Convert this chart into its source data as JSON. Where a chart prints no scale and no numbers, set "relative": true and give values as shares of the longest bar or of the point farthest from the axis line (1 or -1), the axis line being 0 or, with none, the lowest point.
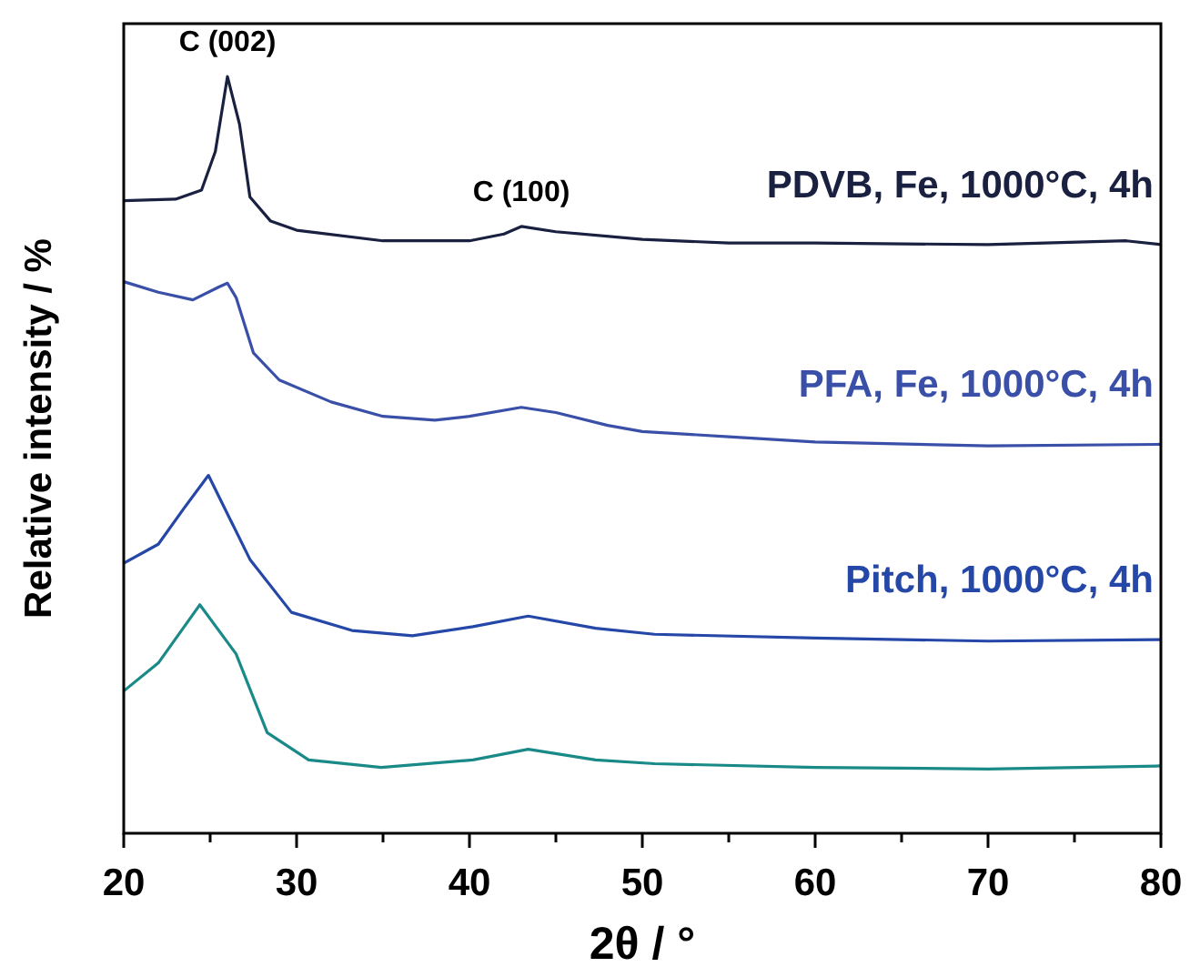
{
  "chart_data": {
    "type": "line",
    "relative": true,
    "xlabel": "2θ  / °",
    "ylabel": "Relative intensity / %",
    "xlim": [
      20,
      80
    ],
    "xticks": [
      20,
      {
        "value": 25,
        "label": null
      },
      30,
      {
        "value": 35,
        "label": null
      },
      40,
      {
        "value": 45,
        "label": null
      },
      50,
      {
        "value": 55,
        "label": null
      },
      60,
      {
        "value": 65,
        "label": null
      },
      70,
      {
        "value": 75,
        "label": null
      },
      80
    ],
    "grid": false,
    "marker": "none",
    "line_style": "solid",
    "annotations": [
      {
        "text": "C (002)",
        "x": 26,
        "y": 1.0
      },
      {
        "text": "C (100)",
        "x": 43,
        "y": 0.802
      }
    ],
    "series": [
      {
        "name": "PDVB, Fe, 1000°C, 4h",
        "color": "#1a2040",
        "x": [
          20,
          23,
          24.5,
          25.3,
          26,
          26.7,
          27.3,
          28.5,
          30,
          35,
          40,
          42,
          43,
          45,
          50,
          55,
          60,
          70,
          78,
          80
        ],
        "values": [
          0.836,
          0.838,
          0.85,
          0.901,
          1.0,
          0.937,
          0.841,
          0.809,
          0.797,
          0.783,
          0.783,
          0.792,
          0.802,
          0.795,
          0.785,
          0.78,
          0.78,
          0.778,
          0.783,
          0.778
        ]
      },
      {
        "name": "PFA, Fe, 1000°C, 4h",
        "color": "#3a50a8",
        "x": [
          20,
          22,
          24,
          25.5,
          26,
          26.5,
          27.5,
          29,
          32,
          35,
          38,
          40,
          43,
          45,
          48,
          50,
          55,
          60,
          70,
          80
        ],
        "values": [
          0.729,
          0.715,
          0.705,
          0.722,
          0.727,
          0.708,
          0.635,
          0.599,
          0.57,
          0.551,
          0.546,
          0.551,
          0.563,
          0.556,
          0.539,
          0.531,
          0.524,
          0.517,
          0.512,
          0.514
        ]
      },
      {
        "name": "Pitch, 1000°C, 4h",
        "color": "#2547a8",
        "x": [
          20,
          22,
          23.5,
          24.9,
          27.3,
          29.7,
          33.2,
          36.7,
          40.2,
          43.4,
          47.3,
          50.7,
          60,
          70,
          80
        ],
        "values": [
          0.357,
          0.382,
          0.43,
          0.473,
          0.362,
          0.292,
          0.268,
          0.261,
          0.273,
          0.287,
          0.271,
          0.263,
          0.258,
          0.254,
          0.256
        ]
      },
      {
        "color": "#1a8a88",
        "x": [
          20,
          22,
          24.4,
          26.5,
          28.3,
          30.7,
          34.9,
          40.2,
          43.4,
          47.3,
          50.7,
          60,
          70,
          80
        ],
        "values": [
          0.188,
          0.225,
          0.302,
          0.237,
          0.133,
          0.097,
          0.087,
          0.097,
          0.111,
          0.097,
          0.092,
          0.087,
          0.085,
          0.089
        ]
      }
    ]
  }
}
